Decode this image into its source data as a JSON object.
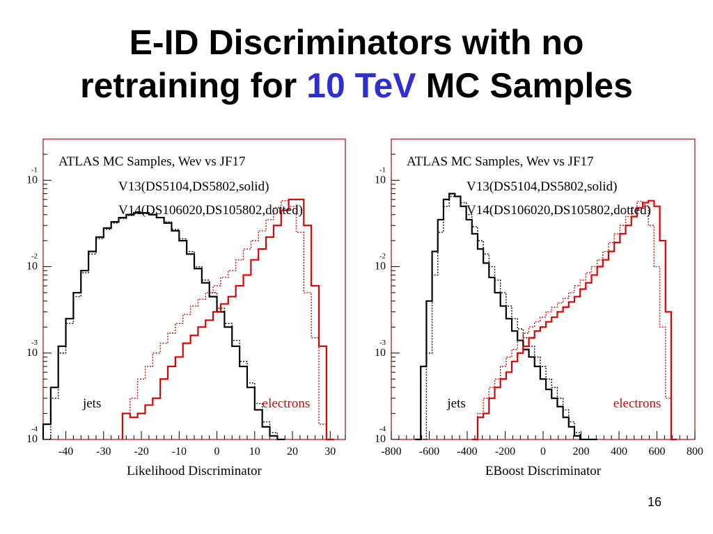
{
  "slide": {
    "title_part1": "E-ID Discriminators with no",
    "title_part2": "retraining for",
    "title_highlight": "10 TeV",
    "title_part3": "MC Samples",
    "page_number": "16"
  },
  "colors": {
    "title_accent": "#2f2fcf",
    "jets": "#000000",
    "electrons": "#e00000",
    "frame": "#c00000"
  },
  "chart_data": [
    {
      "type": "line",
      "y_scale": "log",
      "title": "ATLAS MC Samples, Weν vs JF17",
      "legend_lines": [
        "V13(DS5104,DS5802,solid)",
        "V14(DS106020,DS105802,dotted)"
      ],
      "xlabel": "Likelihood Discriminator",
      "xlim": [
        -46,
        34
      ],
      "ylim": [
        0.0001,
        0.3
      ],
      "x_ticks": [
        -40,
        -30,
        -20,
        -10,
        0,
        10,
        20,
        30
      ],
      "y_ticks": [
        0.0001,
        0.001,
        0.01,
        0.1
      ],
      "y_tick_labels": [
        {
          "base": "10",
          "exp": "-4"
        },
        {
          "base": "10",
          "exp": "-3"
        },
        {
          "base": "10",
          "exp": "-2"
        },
        {
          "base": "10",
          "exp": "-1"
        }
      ],
      "annotations": [
        {
          "text": "jets",
          "color": "#000000"
        },
        {
          "text": "electrons",
          "color": "#e00000"
        }
      ],
      "series": [
        {
          "name": "jets V13",
          "color": "#000000",
          "style": "solid",
          "x": [
            -45,
            -43,
            -41,
            -39,
            -37,
            -35,
            -33,
            -31,
            -29,
            -27,
            -25,
            -23,
            -21,
            -19,
            -17,
            -15,
            -13,
            -11,
            -9,
            -7,
            -5,
            -3,
            -1,
            1,
            3,
            5,
            7,
            9,
            11,
            13,
            15,
            17
          ],
          "y": [
            0.00015,
            0.0004,
            0.0012,
            0.0025,
            0.005,
            0.009,
            0.015,
            0.022,
            0.028,
            0.033,
            0.037,
            0.04,
            0.042,
            0.042,
            0.04,
            0.037,
            0.032,
            0.026,
            0.02,
            0.014,
            0.0095,
            0.0065,
            0.0045,
            0.003,
            0.002,
            0.0012,
            0.0007,
            0.0004,
            0.00022,
            0.00014,
            0.00011,
            0.0001
          ]
        },
        {
          "name": "jets V14",
          "color": "#000000",
          "style": "dotted",
          "x": [
            -45,
            -43,
            -41,
            -39,
            -37,
            -35,
            -33,
            -31,
            -29,
            -27,
            -25,
            -23,
            -21,
            -19,
            -17,
            -15,
            -13,
            -11,
            -9,
            -7,
            -5,
            -3,
            -1,
            1,
            3,
            5,
            7,
            9,
            11,
            13,
            15,
            17
          ],
          "y": [
            0.0001,
            0.0003,
            0.001,
            0.0022,
            0.0045,
            0.0085,
            0.014,
            0.021,
            0.027,
            0.032,
            0.036,
            0.039,
            0.041,
            0.041,
            0.04,
            0.037,
            0.033,
            0.027,
            0.021,
            0.015,
            0.01,
            0.007,
            0.005,
            0.0033,
            0.0022,
            0.0014,
            0.0008,
            0.00045,
            0.00026,
            0.00016,
            0.00012,
            0.0001
          ]
        },
        {
          "name": "electrons V13",
          "color": "#e00000",
          "style": "solid",
          "x": [
            -24,
            -22,
            -20,
            -18,
            -16,
            -14,
            -12,
            -10,
            -8,
            -6,
            -4,
            -2,
            0,
            2,
            4,
            6,
            8,
            10,
            12,
            14,
            16,
            18,
            20,
            22,
            24,
            26,
            28,
            30
          ],
          "y": [
            0.0002,
            0.00018,
            0.0002,
            0.00025,
            0.0003,
            0.0005,
            0.0007,
            0.0009,
            0.0013,
            0.0016,
            0.002,
            0.0024,
            0.003,
            0.0037,
            0.0045,
            0.006,
            0.008,
            0.012,
            0.016,
            0.022,
            0.03,
            0.045,
            0.06,
            0.06,
            0.03,
            0.006,
            0.0012,
            0.0001
          ]
        },
        {
          "name": "electrons V14",
          "color": "#e00000",
          "style": "dotted",
          "x": [
            -24,
            -22,
            -20,
            -18,
            -16,
            -14,
            -12,
            -10,
            -8,
            -6,
            -4,
            -2,
            0,
            2,
            4,
            6,
            8,
            10,
            12,
            14,
            16,
            18,
            20,
            22,
            24,
            26,
            28,
            30
          ],
          "y": [
            0.0002,
            0.0003,
            0.0005,
            0.0007,
            0.001,
            0.0013,
            0.0017,
            0.0022,
            0.0028,
            0.0035,
            0.0042,
            0.005,
            0.006,
            0.0075,
            0.009,
            0.012,
            0.016,
            0.02,
            0.026,
            0.035,
            0.048,
            0.058,
            0.05,
            0.025,
            0.005,
            0.0015,
            0.00015,
            0.0001
          ]
        }
      ]
    },
    {
      "type": "line",
      "y_scale": "log",
      "title": "ATLAS MC Samples, Weν vs JF17",
      "legend_lines": [
        "V13(DS5104,DS5802,solid)",
        "V14(DS106020,DS105802,dotted)"
      ],
      "xlabel": "EBoost Discriminator",
      "xlim": [
        -800,
        800
      ],
      "ylim": [
        0.0001,
        0.3
      ],
      "x_ticks": [
        -800,
        -600,
        -400,
        -200,
        0,
        200,
        400,
        600,
        800
      ],
      "y_ticks": [
        0.0001,
        0.001,
        0.01,
        0.1
      ],
      "y_tick_labels": [
        {
          "base": "10",
          "exp": "-4"
        },
        {
          "base": "10",
          "exp": "-3"
        },
        {
          "base": "10",
          "exp": "-2"
        },
        {
          "base": "10",
          "exp": "-1"
        }
      ],
      "annotations": [
        {
          "text": "jets",
          "color": "#000000"
        },
        {
          "text": "electrons",
          "color": "#e00000"
        }
      ],
      "series": [
        {
          "name": "jets V13",
          "color": "#000000",
          "style": "solid",
          "x": [
            -660,
            -630,
            -600,
            -570,
            -540,
            -510,
            -480,
            -450,
            -420,
            -390,
            -360,
            -330,
            -300,
            -270,
            -240,
            -210,
            -180,
            -150,
            -120,
            -90,
            -60,
            -30,
            0,
            30,
            60,
            90,
            120,
            150,
            180,
            210,
            240,
            270
          ],
          "y": [
            0.0001,
            0.0007,
            0.004,
            0.015,
            0.035,
            0.06,
            0.07,
            0.065,
            0.05,
            0.035,
            0.024,
            0.016,
            0.011,
            0.0075,
            0.005,
            0.0035,
            0.0025,
            0.0018,
            0.0014,
            0.0011,
            0.0009,
            0.0007,
            0.0005,
            0.00038,
            0.0003,
            0.00024,
            0.00018,
            0.00014,
            0.00011,
            0.0001,
            0.0001,
            0.0001
          ]
        },
        {
          "name": "jets V14",
          "color": "#000000",
          "style": "dotted",
          "x": [
            -660,
            -630,
            -600,
            -570,
            -540,
            -510,
            -480,
            -450,
            -420,
            -390,
            -360,
            -330,
            -300,
            -270,
            -240,
            -210,
            -180,
            -150,
            -120,
            -90,
            -60,
            -30,
            0,
            30,
            60,
            90,
            120,
            150,
            180,
            210,
            240,
            270
          ],
          "y": [
            0.0001,
            0.0001,
            0.001,
            0.008,
            0.025,
            0.05,
            0.065,
            0.065,
            0.055,
            0.04,
            0.029,
            0.02,
            0.014,
            0.01,
            0.007,
            0.005,
            0.0035,
            0.0025,
            0.0019,
            0.0015,
            0.0012,
            0.0009,
            0.0007,
            0.0005,
            0.0004,
            0.0003,
            0.00022,
            0.00016,
            0.00012,
            0.0001,
            0.0001,
            0.0001
          ]
        },
        {
          "name": "electrons V13",
          "color": "#e00000",
          "style": "solid",
          "x": [
            -360,
            -330,
            -300,
            -270,
            -240,
            -210,
            -180,
            -150,
            -120,
            -90,
            -60,
            -30,
            0,
            30,
            60,
            90,
            120,
            150,
            180,
            210,
            240,
            270,
            300,
            330,
            360,
            390,
            420,
            450,
            480,
            510,
            540,
            570,
            600,
            630,
            660,
            690
          ],
          "y": [
            0.0001,
            0.00018,
            0.0002,
            0.0003,
            0.0004,
            0.0005,
            0.0006,
            0.0008,
            0.001,
            0.0012,
            0.0015,
            0.0018,
            0.002,
            0.0023,
            0.0026,
            0.003,
            0.0034,
            0.0039,
            0.0045,
            0.0055,
            0.0065,
            0.008,
            0.01,
            0.012,
            0.015,
            0.019,
            0.024,
            0.03,
            0.038,
            0.048,
            0.055,
            0.058,
            0.05,
            0.02,
            0.003,
            0.0001
          ]
        },
        {
          "name": "electrons V14",
          "color": "#e00000",
          "style": "dotted",
          "x": [
            -360,
            -330,
            -300,
            -270,
            -240,
            -210,
            -180,
            -150,
            -120,
            -90,
            -60,
            -30,
            0,
            30,
            60,
            90,
            120,
            150,
            180,
            210,
            240,
            270,
            300,
            330,
            360,
            390,
            420,
            450,
            480,
            510,
            540,
            570,
            600,
            630,
            660,
            690
          ],
          "y": [
            0.0001,
            0.0002,
            0.0003,
            0.0004,
            0.0005,
            0.0007,
            0.0009,
            0.0011,
            0.0014,
            0.0017,
            0.002,
            0.0023,
            0.0026,
            0.003,
            0.0034,
            0.0038,
            0.0043,
            0.005,
            0.006,
            0.007,
            0.0085,
            0.01,
            0.012,
            0.015,
            0.019,
            0.024,
            0.03,
            0.038,
            0.048,
            0.057,
            0.05,
            0.03,
            0.01,
            0.002,
            0.0003,
            0.0001
          ]
        }
      ]
    }
  ]
}
